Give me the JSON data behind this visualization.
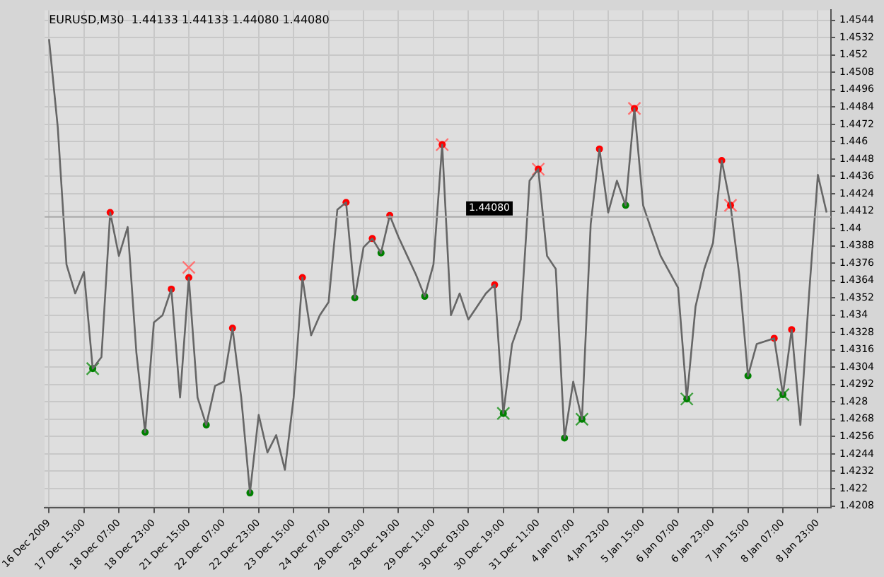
{
  "chart_data": {
    "type": "line",
    "title": "EURUSD,M30  1.44133 1.44133 1.44080 1.44080",
    "categories": [
      "16 Dec 2009",
      null,
      null,
      null,
      "17 Dec 15:00",
      null,
      null,
      null,
      "18 Dec 07:00",
      null,
      null,
      null,
      "18 Dec 23:00",
      null,
      null,
      null,
      "21 Dec 15:00",
      null,
      null,
      null,
      "22 Dec 07:00",
      null,
      null,
      null,
      "22 Dec 23:00",
      null,
      null,
      null,
      "23 Dec 15:00",
      null,
      null,
      null,
      "24 Dec 07:00",
      null,
      null,
      null,
      "28 Dec 03:00",
      null,
      null,
      null,
      "28 Dec 19:00",
      null,
      null,
      null,
      "29 Dec 11:00",
      null,
      null,
      null,
      "30 Dec 03:00",
      null,
      null,
      null,
      "30 Dec 19:00",
      null,
      null,
      null,
      "31 Dec 11:00",
      null,
      null,
      null,
      "4 Jan 07:00",
      null,
      null,
      null,
      "4 Jan 23:00",
      null,
      null,
      null,
      "5 Jan 15:00",
      null,
      null,
      null,
      "6 Jan 07:00",
      null,
      null,
      null,
      "6 Jan 23:00",
      null,
      null,
      null,
      "7 Jan 15:00",
      null,
      null,
      null,
      "8 Jan 07:00",
      null,
      null,
      null,
      "8 Jan 23:00",
      null
    ],
    "ylim": [
      1.4207,
      1.4551
    ],
    "yticks": [
      1.4208,
      1.422,
      1.4232,
      1.4244,
      1.4256,
      1.4268,
      1.428,
      1.4292,
      1.4304,
      1.4316,
      1.4328,
      1.434,
      1.4352,
      1.4364,
      1.4376,
      1.4388,
      1.44,
      1.4412,
      1.4424,
      1.4436,
      1.4448,
      1.446,
      1.4472,
      1.4484,
      1.4496,
      1.4508,
      1.452,
      1.4532,
      1.4544
    ],
    "grid": true,
    "legend": false,
    "ref_lines": [
      {
        "axis": "y",
        "value": 1.4408,
        "label": "1.44080",
        "color": "#a8a8a8"
      }
    ],
    "series": [
      {
        "color": "#666666",
        "marker": "none",
        "values": [
          1.4531,
          1.447,
          1.4375,
          1.4355,
          1.437,
          1.4303,
          1.4311,
          1.4411,
          1.4381,
          1.4401,
          1.4314,
          1.4259,
          1.4335,
          1.434,
          1.4358,
          1.4283,
          1.4366,
          1.4283,
          1.4264,
          1.4291,
          1.4294,
          1.4331,
          1.4283,
          1.4217,
          1.4271,
          1.4245,
          1.4257,
          1.4233,
          1.4283,
          1.4366,
          1.4326,
          1.434,
          1.4349,
          1.4413,
          1.4418,
          1.4352,
          1.4387,
          1.4393,
          1.4383,
          1.4409,
          1.4394,
          1.4381,
          1.4368,
          1.4353,
          1.4375,
          1.4458,
          1.434,
          1.4355,
          1.4337,
          1.4346,
          1.4355,
          1.4361,
          1.4272,
          1.432,
          1.4337,
          1.4433,
          1.4441,
          1.4381,
          1.4372,
          1.4255,
          1.4294,
          1.4268,
          1.4403,
          1.4455,
          1.4411,
          1.4433,
          1.4416,
          1.4483,
          1.4416,
          1.4398,
          1.4381,
          1.437,
          1.4359,
          1.4282,
          1.4346,
          1.4372,
          1.439,
          1.4447,
          1.4416,
          1.4368,
          1.4298,
          1.432,
          1.4322,
          1.4324,
          1.4285,
          1.433,
          1.4264,
          1.4355,
          1.4437,
          1.4411
        ]
      },
      {
        "type": "scatter",
        "color": "#ff0000",
        "marker": "circle",
        "values": [
          null,
          null,
          null,
          null,
          null,
          null,
          null,
          1.4411,
          null,
          null,
          null,
          null,
          null,
          null,
          1.4358,
          null,
          1.4366,
          null,
          null,
          null,
          null,
          1.4331,
          null,
          null,
          null,
          null,
          null,
          null,
          null,
          1.4366,
          null,
          null,
          null,
          null,
          1.4418,
          null,
          null,
          1.4393,
          null,
          1.4409,
          null,
          null,
          null,
          null,
          null,
          1.4458,
          null,
          null,
          null,
          null,
          null,
          1.4361,
          null,
          null,
          null,
          null,
          1.4441,
          null,
          null,
          null,
          null,
          null,
          null,
          1.4455,
          null,
          null,
          null,
          1.4483,
          null,
          null,
          null,
          null,
          null,
          null,
          null,
          null,
          null,
          1.4447,
          1.4416,
          null,
          null,
          null,
          null,
          1.4324,
          null,
          1.433,
          null,
          null,
          null,
          null
        ]
      },
      {
        "type": "scatter",
        "color": "#008000",
        "marker": "circle",
        "values": [
          null,
          null,
          null,
          null,
          null,
          1.4303,
          null,
          null,
          null,
          null,
          null,
          1.4259,
          null,
          null,
          null,
          null,
          null,
          null,
          1.4264,
          null,
          null,
          null,
          null,
          1.4217,
          null,
          null,
          null,
          null,
          null,
          null,
          null,
          null,
          null,
          null,
          null,
          1.4352,
          null,
          null,
          1.4383,
          null,
          null,
          null,
          null,
          1.4353,
          null,
          null,
          null,
          null,
          null,
          null,
          null,
          null,
          1.4272,
          null,
          null,
          null,
          null,
          null,
          null,
          1.4255,
          null,
          1.4268,
          null,
          null,
          null,
          null,
          1.4416,
          null,
          null,
          null,
          null,
          null,
          null,
          1.4282,
          null,
          null,
          null,
          null,
          null,
          null,
          1.4298,
          null,
          null,
          null,
          1.4285,
          null,
          null,
          null,
          null,
          null
        ]
      },
      {
        "type": "scatter",
        "color": "#ff7070",
        "marker": "cross",
        "values": [
          null,
          null,
          null,
          null,
          null,
          null,
          null,
          null,
          null,
          null,
          null,
          null,
          null,
          null,
          null,
          null,
          1.4373,
          null,
          null,
          null,
          null,
          null,
          null,
          null,
          null,
          null,
          null,
          null,
          null,
          null,
          null,
          null,
          null,
          null,
          null,
          null,
          null,
          null,
          null,
          null,
          null,
          null,
          null,
          null,
          null,
          1.4458,
          null,
          null,
          null,
          null,
          null,
          null,
          null,
          null,
          null,
          null,
          1.4441,
          null,
          null,
          null,
          null,
          null,
          null,
          null,
          null,
          null,
          null,
          1.4483,
          null,
          null,
          null,
          null,
          null,
          null,
          null,
          null,
          null,
          null,
          1.4416,
          null,
          null,
          null,
          null,
          null,
          null,
          null,
          null,
          null,
          null,
          null
        ]
      },
      {
        "type": "scatter",
        "color": "#40a040",
        "marker": "cross",
        "values": [
          null,
          null,
          null,
          null,
          null,
          1.4303,
          null,
          null,
          null,
          null,
          null,
          null,
          null,
          null,
          null,
          null,
          null,
          null,
          null,
          null,
          null,
          null,
          null,
          null,
          null,
          null,
          null,
          null,
          null,
          null,
          null,
          null,
          null,
          null,
          null,
          null,
          null,
          null,
          null,
          null,
          null,
          null,
          null,
          null,
          null,
          null,
          null,
          null,
          null,
          null,
          null,
          null,
          1.4272,
          null,
          null,
          null,
          null,
          null,
          null,
          null,
          null,
          1.4268,
          null,
          null,
          null,
          null,
          null,
          null,
          null,
          null,
          null,
          null,
          null,
          1.4282,
          null,
          null,
          null,
          null,
          null,
          null,
          null,
          null,
          null,
          null,
          1.4285,
          null,
          null,
          null,
          null,
          null
        ]
      }
    ]
  }
}
